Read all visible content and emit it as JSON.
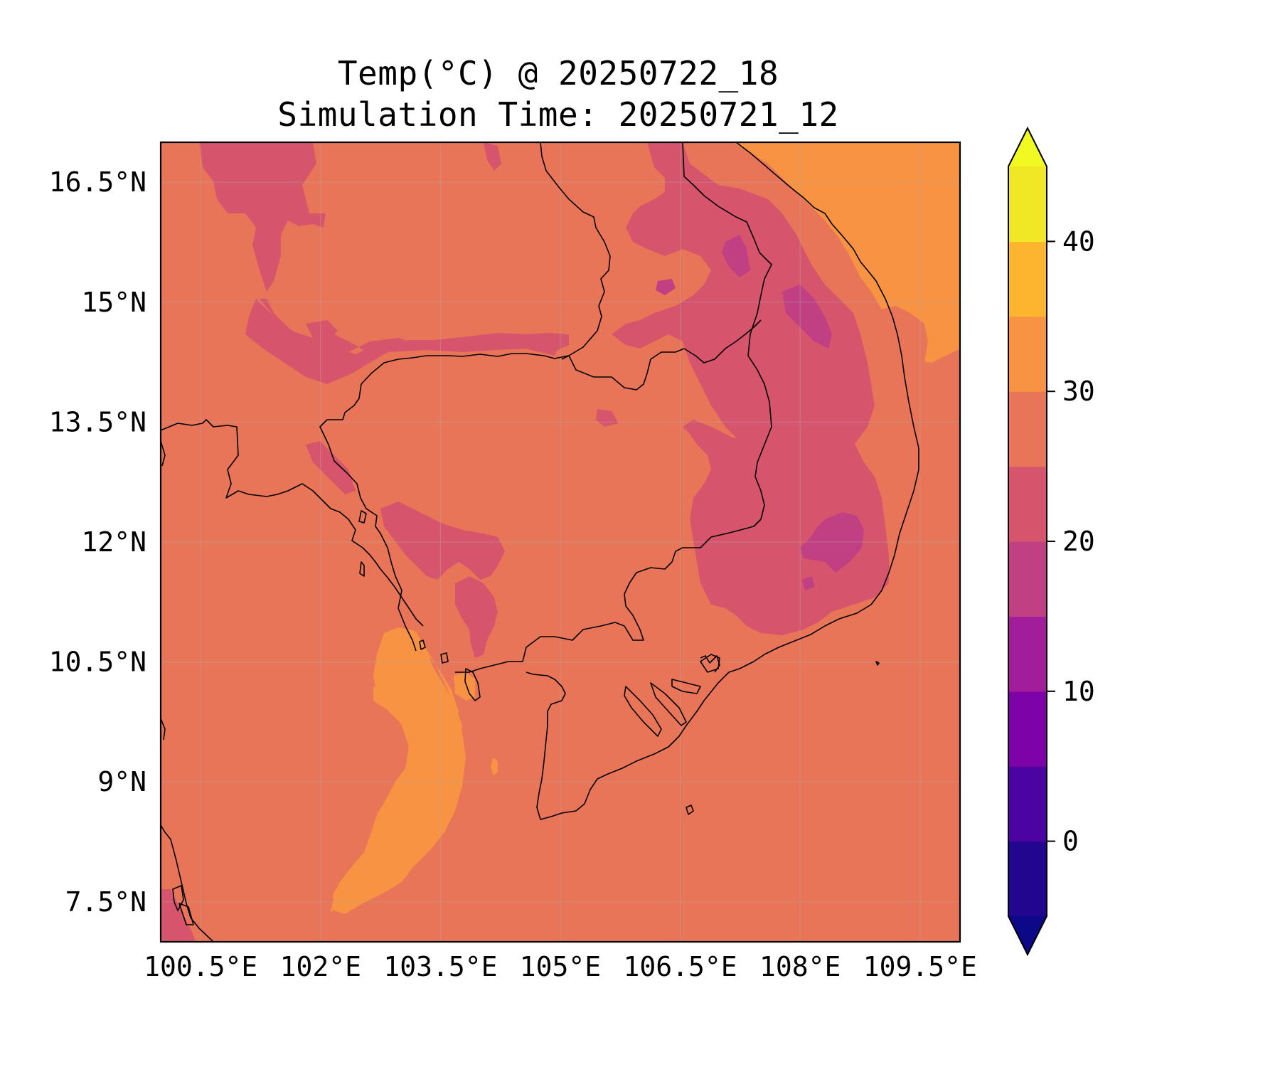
{
  "title": {
    "line1": "Temp(°C) @ 20250722_18",
    "line2": "Simulation Time: 20250721_12"
  },
  "map": {
    "type": "contourf",
    "variable": "Temp(°C)",
    "extent": {
      "lon_min": 100.0,
      "lon_max": 110.0,
      "lat_min": 7.0,
      "lat_max": 17.0
    },
    "x_ticks": [
      {
        "value": 100.5,
        "label": "100.5°E"
      },
      {
        "value": 102.0,
        "label": "102°E"
      },
      {
        "value": 103.5,
        "label": "103.5°E"
      },
      {
        "value": 105.0,
        "label": "105°E"
      },
      {
        "value": 106.5,
        "label": "106.5°E"
      },
      {
        "value": 108.0,
        "label": "108°E"
      },
      {
        "value": 109.5,
        "label": "109.5°E"
      }
    ],
    "y_ticks": [
      {
        "value": 16.5,
        "label": "16.5°N"
      },
      {
        "value": 15.0,
        "label": "15°N"
      },
      {
        "value": 13.5,
        "label": "13.5°N"
      },
      {
        "value": 12.0,
        "label": "12°N"
      },
      {
        "value": 10.5,
        "label": "10.5°N"
      },
      {
        "value": 9.0,
        "label": "9°N"
      },
      {
        "value": 7.5,
        "label": "7.5°N"
      }
    ],
    "grid": true,
    "dominant_band": "25–30",
    "colors": {
      "band_25_30": "#e97558",
      "band_20_25": "#d6556d",
      "band_15_20": "#c13f83",
      "band_30_35": "#f79342",
      "coastline": "#000000"
    }
  },
  "colorbar": {
    "levels": [
      -5,
      0,
      5,
      10,
      15,
      20,
      25,
      30,
      35,
      40,
      45
    ],
    "colors": [
      "#220690",
      "#4b03a1",
      "#7d03a8",
      "#a21d9a",
      "#c13f83",
      "#d6556d",
      "#e97558",
      "#f79342",
      "#fdb42f",
      "#f0e725"
    ],
    "extend_low_color": "#0d0887",
    "extend_high_color": "#f0f921",
    "tick_values": [
      0,
      10,
      20,
      30,
      40
    ],
    "tick_labels": [
      "0",
      "10",
      "20",
      "30",
      "40"
    ],
    "extend": "both"
  }
}
